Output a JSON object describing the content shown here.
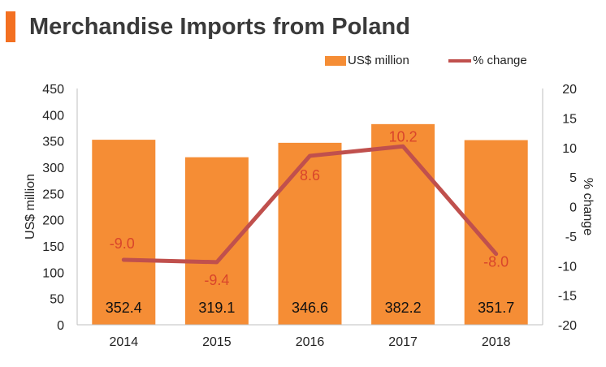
{
  "title": "Merchandise Imports from Poland",
  "legend": {
    "bar_label": "US$ million",
    "line_label": "% change"
  },
  "colors": {
    "accent": "#f37021",
    "bar": "#f58d35",
    "line": "#c0504d",
    "line_label": "#d9452b"
  },
  "chart_data": {
    "type": "bar",
    "categories": [
      "2014",
      "2015",
      "2016",
      "2017",
      "2018"
    ],
    "series": [
      {
        "name": "US$ million",
        "type": "bar",
        "axis": "left",
        "values": [
          352.4,
          319.1,
          346.6,
          382.2,
          351.7
        ]
      },
      {
        "name": "% change",
        "type": "line",
        "axis": "right",
        "values": [
          -9.0,
          -9.4,
          8.6,
          10.2,
          -8.0
        ]
      }
    ],
    "bar_labels": [
      "352.4",
      "319.1",
      "346.6",
      "382.2",
      "351.7"
    ],
    "line_labels": [
      "-9.0",
      "-9.4",
      "8.6",
      "10.2",
      "-8.0"
    ],
    "ylabel": "US$ million",
    "y2label": "% change",
    "ylim": [
      0,
      450
    ],
    "y2lim": [
      -20,
      20
    ],
    "yticks": [
      "0",
      "50",
      "100",
      "150",
      "200",
      "250",
      "300",
      "350",
      "400",
      "450"
    ],
    "y2ticks": [
      "-20",
      "-15",
      "-10",
      "-5",
      "0",
      "5",
      "10",
      "15",
      "20"
    ],
    "grid": false,
    "legend_position": "top-right"
  }
}
